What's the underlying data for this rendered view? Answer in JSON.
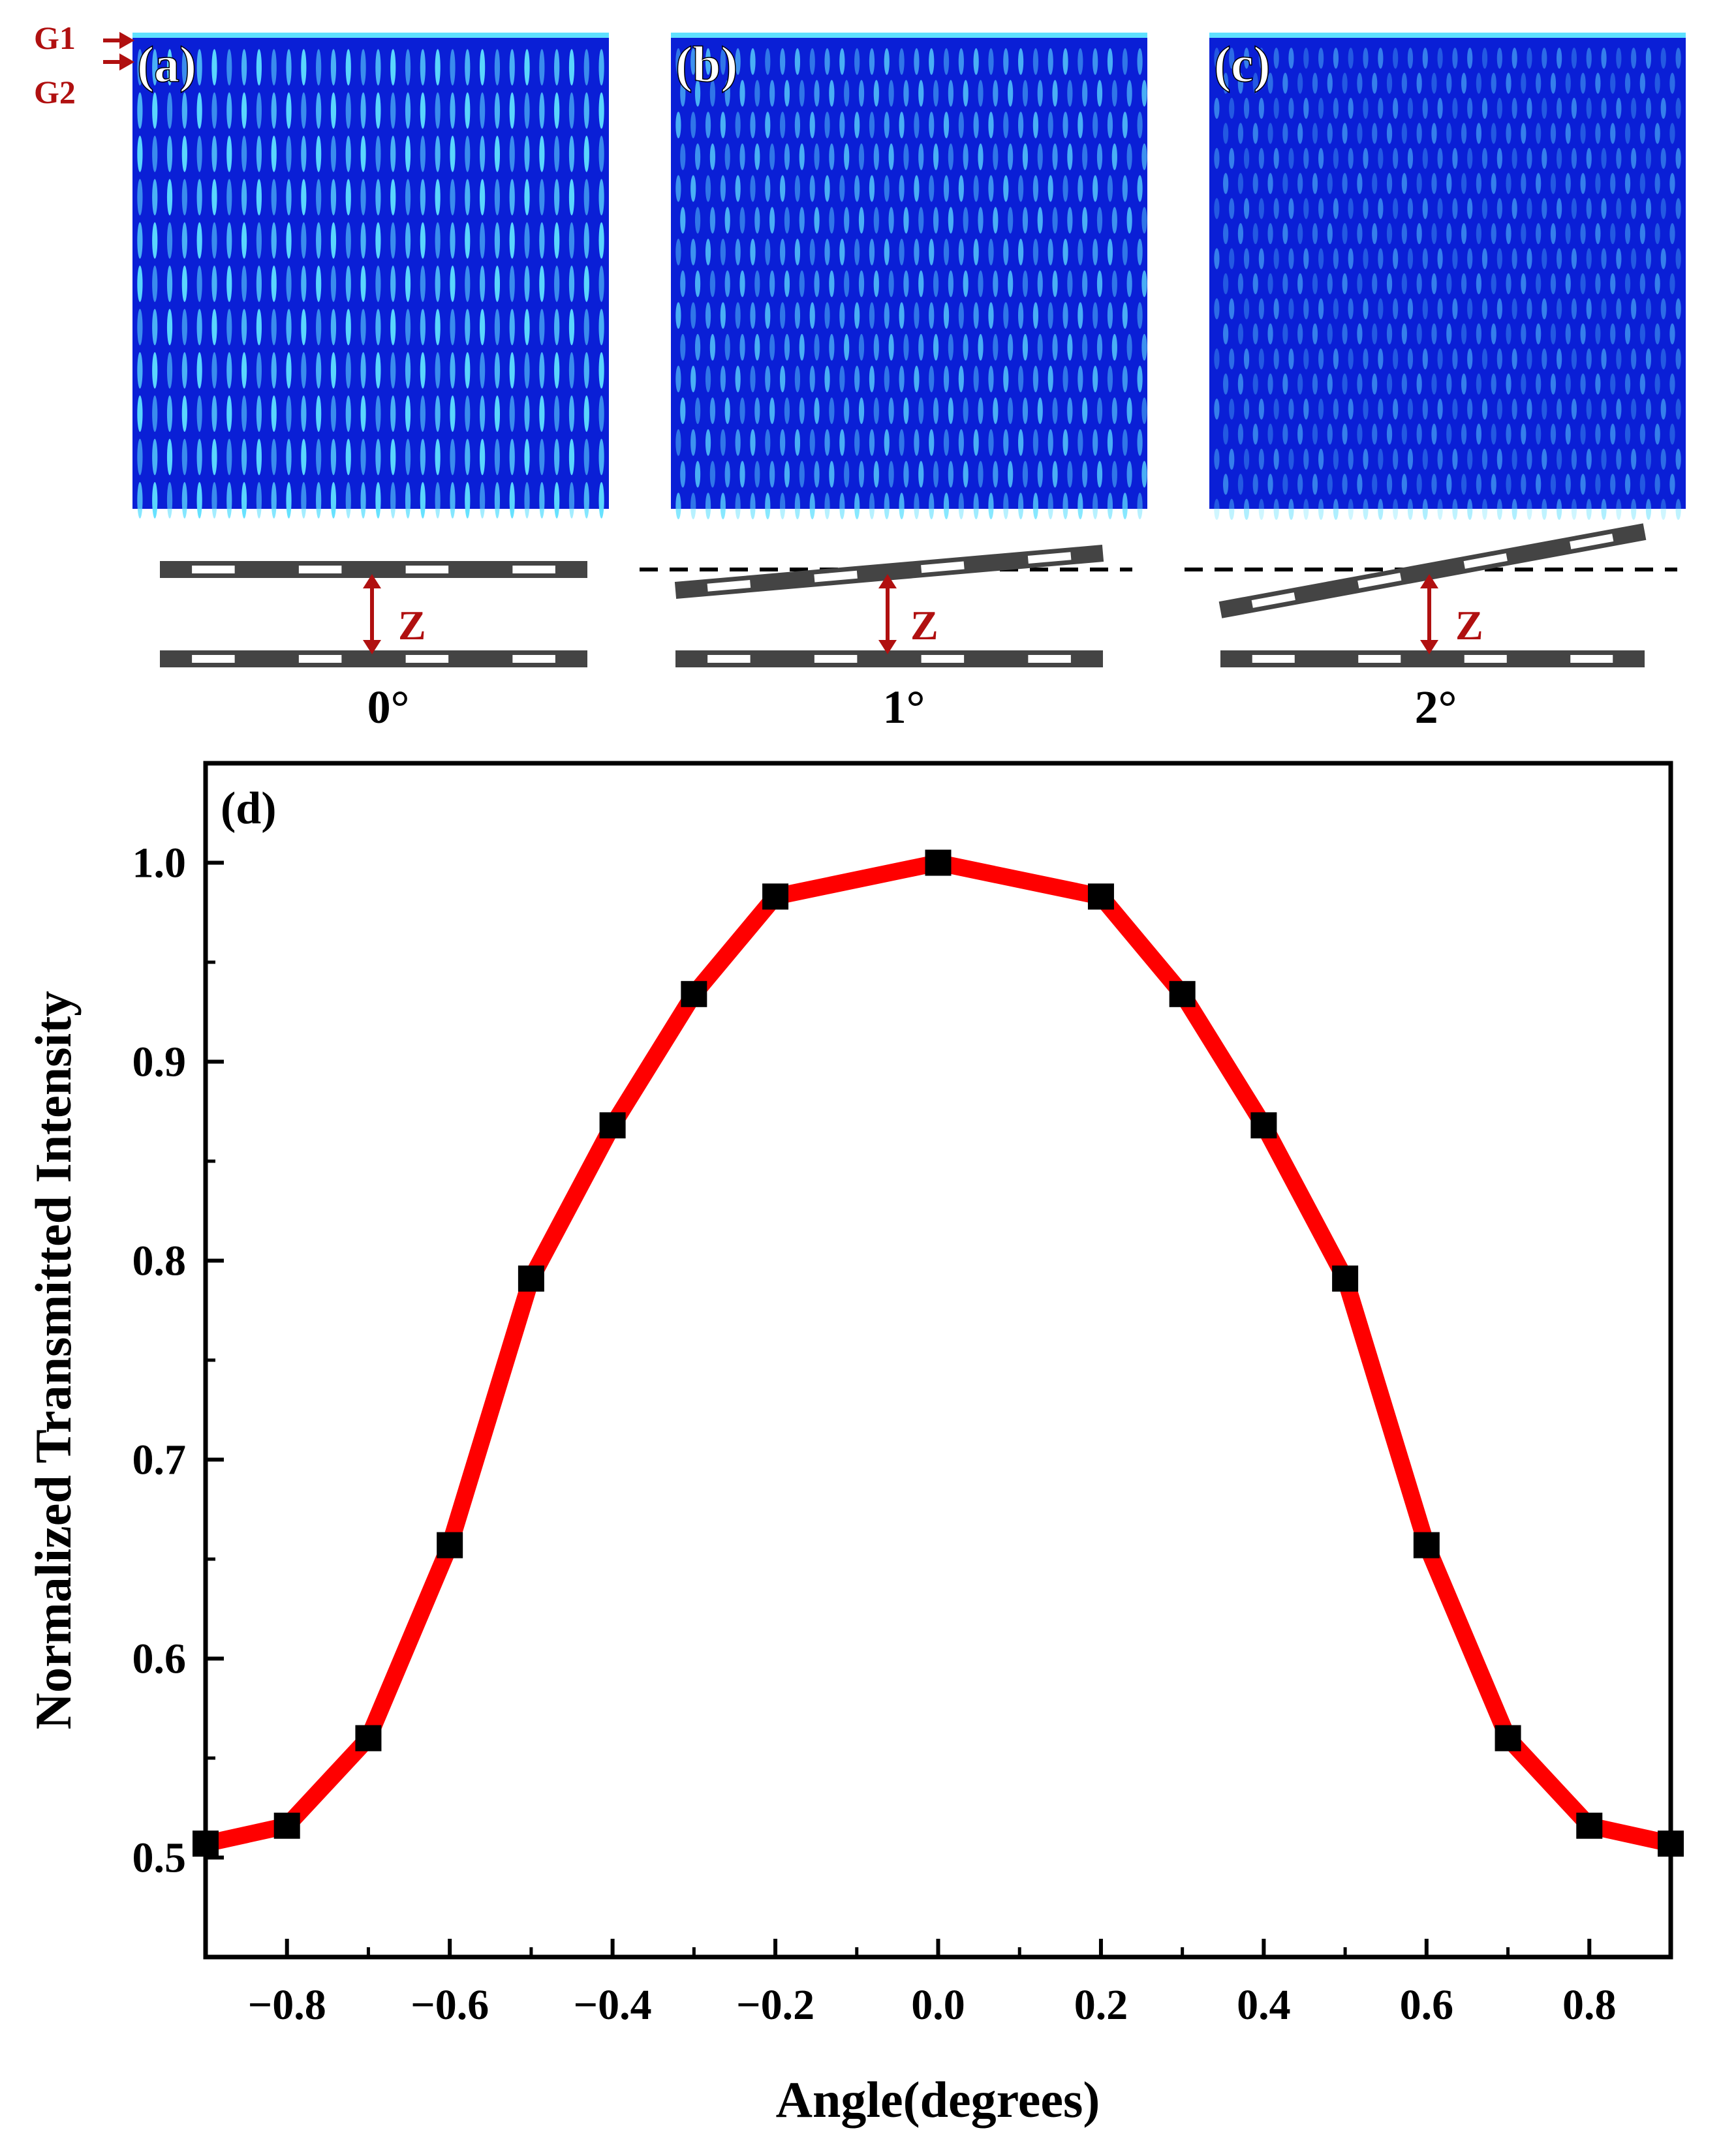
{
  "panels": [
    {
      "label": "(a)",
      "angle_label": "0°",
      "tilt_deg": 0
    },
    {
      "label": "(b)",
      "angle_label": "1°",
      "tilt_deg": 1
    },
    {
      "label": "(c)",
      "angle_label": "2°",
      "tilt_deg": 2
    }
  ],
  "grating_labels": {
    "g1": "G1",
    "g2": "G2"
  },
  "gap_label": "Z",
  "colors": {
    "field_dark": "#0a1fd6",
    "field_bright": "#5fe0ff",
    "accent_red": "#b01010",
    "grating": "#444444",
    "curve": "#ff0000",
    "marker": "#000000"
  },
  "chart_data": {
    "type": "line",
    "panel_label": "(d)",
    "title": "",
    "xlabel": "Angle(degrees)",
    "ylabel": "Normalized Transmitted Intensity",
    "xlim": [
      -0.9,
      0.9
    ],
    "ylim": [
      0.45,
      1.05
    ],
    "xticks": [
      -0.8,
      -0.6,
      -0.4,
      -0.2,
      0.0,
      0.2,
      0.4,
      0.6,
      0.8
    ],
    "xtick_labels": [
      "−0.8",
      "−0.6",
      "−0.4",
      "−0.2",
      "0.0",
      "0.2",
      "0.4",
      "0.6",
      "0.8"
    ],
    "yticks": [
      0.5,
      0.6,
      0.7,
      0.8,
      0.9,
      1.0
    ],
    "ytick_labels": [
      "0.5",
      "0.6",
      "0.7",
      "0.8",
      "0.9",
      "1.0"
    ],
    "grid": false,
    "series": [
      {
        "x": [
          -0.9,
          -0.8,
          -0.7,
          -0.6,
          -0.5,
          -0.4,
          -0.3,
          -0.2,
          0.0,
          0.2,
          0.3,
          0.4,
          0.5,
          0.6,
          0.7,
          0.8,
          0.9
        ],
        "y": [
          0.507,
          0.516,
          0.56,
          0.657,
          0.791,
          0.868,
          0.934,
          0.983,
          1.0,
          0.983,
          0.934,
          0.868,
          0.791,
          0.657,
          0.56,
          0.516,
          0.507
        ]
      }
    ]
  }
}
